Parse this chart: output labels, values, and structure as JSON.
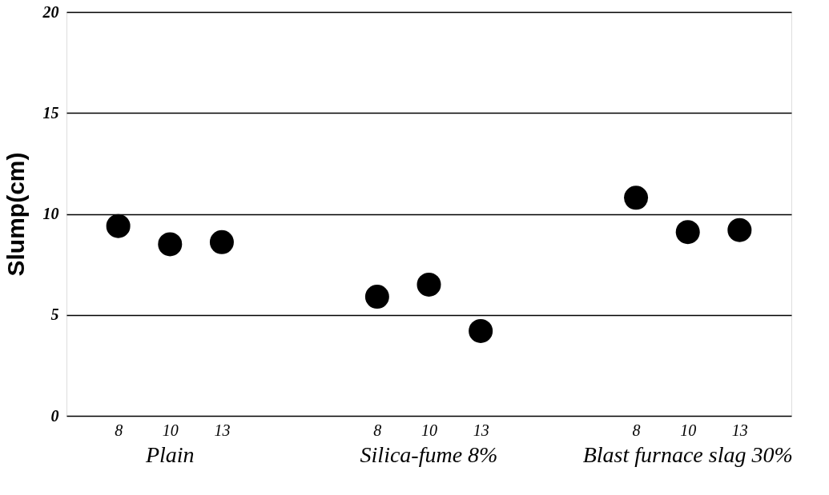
{
  "chart_data": {
    "type": "scatter",
    "ylabel": "Slump(cm)",
    "categories": [
      "8",
      "10",
      "13",
      null,
      null,
      "8",
      "10",
      "13",
      null,
      null,
      "8",
      "10",
      "13"
    ],
    "values": [
      9.4,
      8.5,
      8.6,
      null,
      null,
      5.9,
      6.5,
      4.2,
      null,
      null,
      10.8,
      9.1,
      9.2
    ],
    "color": "#000000",
    "marker": "circle",
    "ylim": [
      0,
      20
    ],
    "yticks": [
      0,
      5,
      10,
      15,
      20
    ],
    "grid": "y",
    "annotations": [
      "Plain",
      "Silica-fume 8%",
      "Blast furnace slag 30%"
    ]
  }
}
